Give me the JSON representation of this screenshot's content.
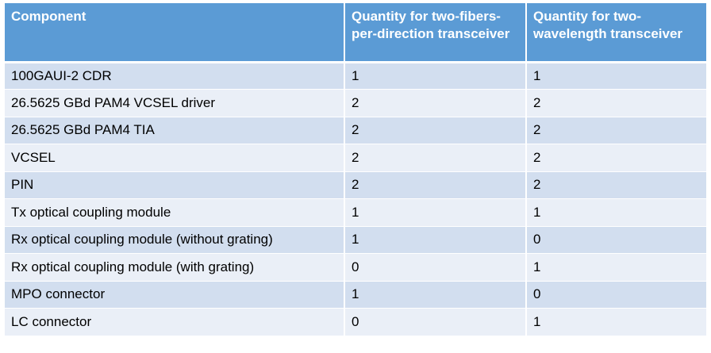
{
  "table": {
    "headers": [
      "Component",
      "Quantity for two-fibers-per-direction transceiver",
      "Quantity for two-wavelength transceiver"
    ],
    "rows": [
      [
        "100GAUI-2 CDR",
        "1",
        "1"
      ],
      [
        "26.5625 GBd PAM4 VCSEL driver",
        "2",
        "2"
      ],
      [
        "26.5625 GBd PAM4 TIA",
        "2",
        "2"
      ],
      [
        "VCSEL",
        "2",
        "2"
      ],
      [
        "PIN",
        "2",
        "2"
      ],
      [
        "Tx optical coupling module",
        "1",
        "1"
      ],
      [
        "Rx optical coupling module (without grating)",
        "1",
        "0"
      ],
      [
        "Rx optical coupling module (with grating)",
        "0",
        "1"
      ],
      [
        "MPO connector",
        "1",
        "0"
      ],
      [
        "LC connector",
        "0",
        "1"
      ]
    ]
  },
  "colors": {
    "header_bg": "#5b9bd5",
    "row_odd_bg": "#d2deef",
    "row_even_bg": "#eaeff7"
  }
}
